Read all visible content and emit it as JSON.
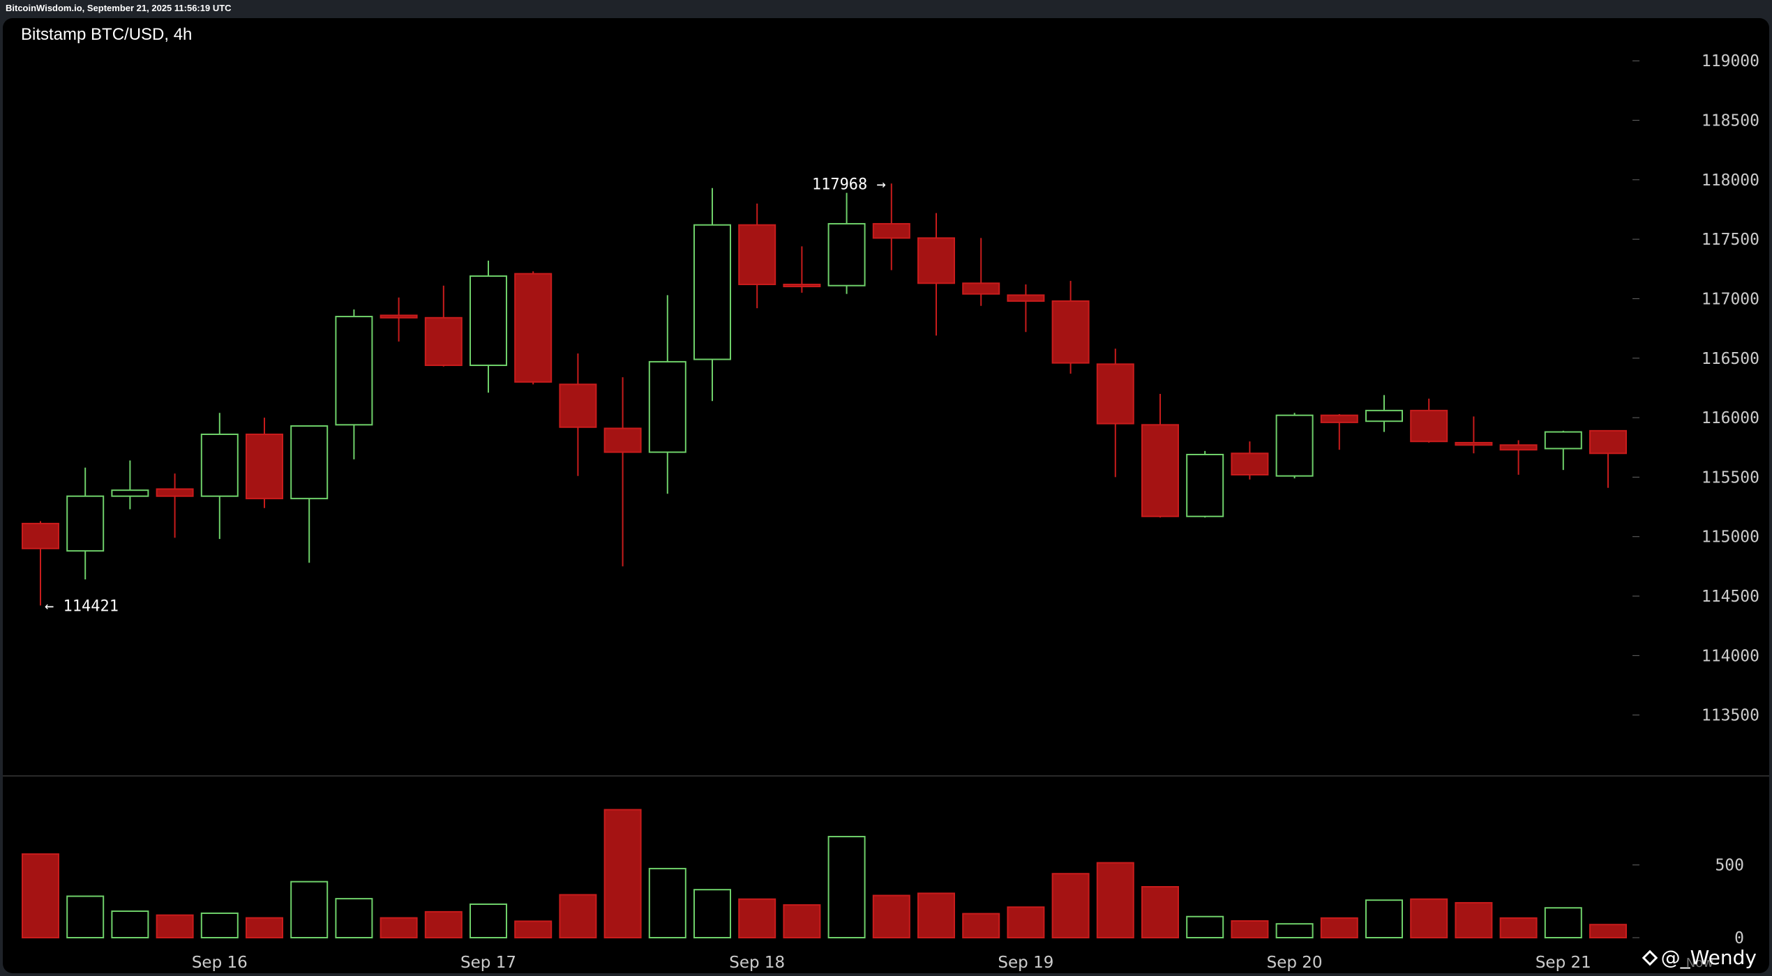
{
  "header": {
    "source_line": "BitcoinWisdom.io, September 21, 2025 11:56:19 UTC"
  },
  "chart_title": "Bitstamp BTC/USD, 4h",
  "watermark": {
    "icon": "diamond-icon",
    "text": "@_Wendy"
  },
  "now_label": "Now",
  "colors": {
    "up": "#6fd16a",
    "down": "#a51313",
    "down_border": "#c91c1c",
    "axis_text": "#cccccc",
    "background": "#000000"
  },
  "chart_data": {
    "type": "candlestick",
    "title": "Bitstamp BTC/USD, 4h",
    "interval": "4h",
    "price_axis": {
      "ylim": [
        113000,
        119300
      ],
      "ticks": [
        113500,
        114000,
        114500,
        115000,
        115500,
        116000,
        116500,
        117000,
        117500,
        118000,
        118500,
        119000
      ]
    },
    "volume_axis": {
      "ylim": [
        0,
        1050
      ],
      "ticks": [
        0,
        500
      ]
    },
    "x_labels": [
      {
        "label": "Sep 16",
        "candle_index": 4
      },
      {
        "label": "Sep 17",
        "candle_index": 10
      },
      {
        "label": "Sep 18",
        "candle_index": 16
      },
      {
        "label": "Sep 19",
        "candle_index": 22
      },
      {
        "label": "Sep 20",
        "candle_index": 28
      },
      {
        "label": "Sep 21",
        "candle_index": 34
      }
    ],
    "annotations": [
      {
        "text": "← 114421",
        "price": 114421,
        "candle_index": 0,
        "side": "right"
      },
      {
        "text": "117968 →",
        "price": 117968,
        "candle_index": 19,
        "side": "left"
      }
    ],
    "candles": [
      {
        "open": 115110,
        "high": 115130,
        "low": 114421,
        "close": 114900,
        "volume": 575
      },
      {
        "open": 114880,
        "high": 115580,
        "low": 114640,
        "close": 115340,
        "volume": 285
      },
      {
        "open": 115340,
        "high": 115640,
        "low": 115230,
        "close": 115390,
        "volume": 182
      },
      {
        "open": 115400,
        "high": 115530,
        "low": 114990,
        "close": 115340,
        "volume": 155
      },
      {
        "open": 115340,
        "high": 116040,
        "low": 114980,
        "close": 115860,
        "volume": 168
      },
      {
        "open": 115860,
        "high": 116000,
        "low": 115240,
        "close": 115320,
        "volume": 136
      },
      {
        "open": 115320,
        "high": 115930,
        "low": 114780,
        "close": 115930,
        "volume": 385
      },
      {
        "open": 115940,
        "high": 116910,
        "low": 115650,
        "close": 116850,
        "volume": 268
      },
      {
        "open": 116860,
        "high": 117010,
        "low": 116640,
        "close": 116840,
        "volume": 136
      },
      {
        "open": 116840,
        "high": 117110,
        "low": 116430,
        "close": 116440,
        "volume": 178
      },
      {
        "open": 116440,
        "high": 117320,
        "low": 116210,
        "close": 117190,
        "volume": 230
      },
      {
        "open": 117210,
        "high": 117230,
        "low": 116280,
        "close": 116300,
        "volume": 113
      },
      {
        "open": 116280,
        "high": 116540,
        "low": 115510,
        "close": 115920,
        "volume": 295
      },
      {
        "open": 115910,
        "high": 116340,
        "low": 114750,
        "close": 115710,
        "volume": 880
      },
      {
        "open": 115710,
        "high": 117030,
        "low": 115360,
        "close": 116470,
        "volume": 475
      },
      {
        "open": 116490,
        "high": 117930,
        "low": 116140,
        "close": 117620,
        "volume": 330
      },
      {
        "open": 117620,
        "high": 117800,
        "low": 116920,
        "close": 117120,
        "volume": 265
      },
      {
        "open": 117120,
        "high": 117440,
        "low": 117050,
        "close": 117110,
        "volume": 225
      },
      {
        "open": 117110,
        "high": 117890,
        "low": 117040,
        "close": 117630,
        "volume": 695
      },
      {
        "open": 117630,
        "high": 117968,
        "low": 117240,
        "close": 117510,
        "volume": 290
      },
      {
        "open": 117510,
        "high": 117720,
        "low": 116690,
        "close": 117130,
        "volume": 305
      },
      {
        "open": 117130,
        "high": 117510,
        "low": 116940,
        "close": 117040,
        "volume": 165
      },
      {
        "open": 117030,
        "high": 117120,
        "low": 116720,
        "close": 116980,
        "volume": 210
      },
      {
        "open": 116980,
        "high": 117150,
        "low": 116370,
        "close": 116460,
        "volume": 440
      },
      {
        "open": 116450,
        "high": 116580,
        "low": 115500,
        "close": 115950,
        "volume": 515
      },
      {
        "open": 115940,
        "high": 116200,
        "low": 115160,
        "close": 115170,
        "volume": 350
      },
      {
        "open": 115170,
        "high": 115720,
        "low": 115160,
        "close": 115690,
        "volume": 145
      },
      {
        "open": 115700,
        "high": 115800,
        "low": 115480,
        "close": 115520,
        "volume": 115
      },
      {
        "open": 115510,
        "high": 116040,
        "low": 115490,
        "close": 116020,
        "volume": 95
      },
      {
        "open": 116020,
        "high": 116030,
        "low": 115730,
        "close": 115960,
        "volume": 135
      },
      {
        "open": 115970,
        "high": 116190,
        "low": 115880,
        "close": 116060,
        "volume": 258
      },
      {
        "open": 116060,
        "high": 116160,
        "low": 115790,
        "close": 115800,
        "volume": 265
      },
      {
        "open": 115790,
        "high": 116010,
        "low": 115700,
        "close": 115770,
        "volume": 240
      },
      {
        "open": 115770,
        "high": 115810,
        "low": 115520,
        "close": 115730,
        "volume": 135
      },
      {
        "open": 115740,
        "high": 115890,
        "low": 115560,
        "close": 115880,
        "volume": 205
      },
      {
        "open": 115890,
        "high": 115890,
        "low": 115410,
        "close": 115700,
        "volume": 90
      }
    ]
  }
}
